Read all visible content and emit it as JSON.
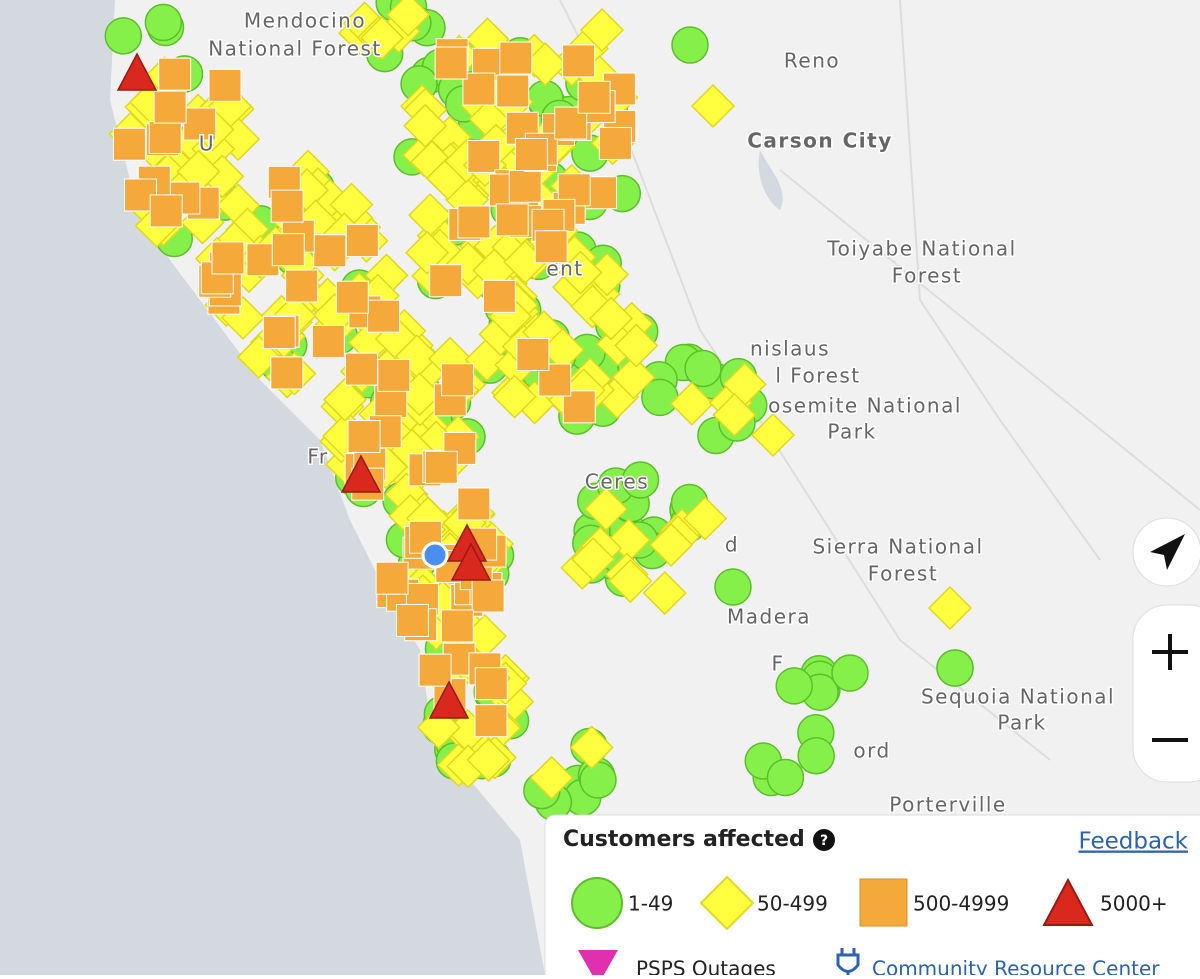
{
  "map_labels": [
    "Mendocino",
    "National Forest",
    "Reno",
    "Carson City",
    "Toiyabe National",
    "Forest",
    "nislaus",
    "l Forest",
    "osemite National",
    "Park",
    "Ceres",
    "Sierra National",
    "Forest",
    "Madera",
    "Sequoia National",
    "Park",
    "Porterville",
    "Fr",
    "U",
    "ent",
    "d",
    "F",
    "ord"
  ],
  "legend": {
    "title": "Customers affected",
    "help": "?",
    "feedback": "Feedback",
    "items": [
      "1-49",
      "50-499",
      "500-4999",
      "5000+"
    ],
    "extra": [
      "PSPS Outages",
      "Community Resource Center"
    ]
  }
}
